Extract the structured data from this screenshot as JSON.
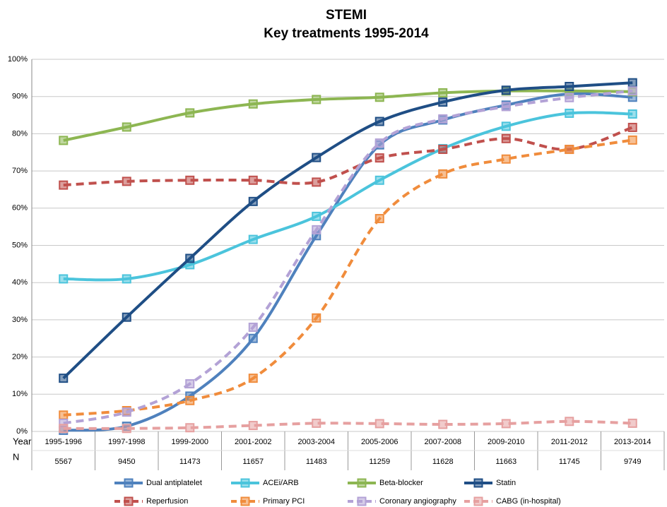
{
  "chart_data": {
    "type": "line",
    "title": "STEMI",
    "subtitle": "Key treatments 1995-2014",
    "categories": [
      "1995-1996",
      "1997-1998",
      "1999-2000",
      "2001-2002",
      "2003-2004",
      "2005-2006",
      "2007-2008",
      "2009-2010",
      "2011-2012",
      "2013-2014"
    ],
    "row_labels": [
      "Year",
      "N"
    ],
    "n_values": [
      5567,
      9450,
      11473,
      11657,
      11483,
      11259,
      11628,
      11663,
      11745,
      9749
    ],
    "ylim": [
      0,
      100
    ],
    "yticks": [
      {
        "value": 0,
        "label": "0%"
      },
      {
        "value": 10,
        "label": "10%"
      },
      {
        "value": 20,
        "label": "20%"
      },
      {
        "value": 30,
        "label": "30%"
      },
      {
        "value": 40,
        "label": "40%"
      },
      {
        "value": 50,
        "label": "50%"
      },
      {
        "value": 60,
        "label": "60%"
      },
      {
        "value": 70,
        "label": "70%"
      },
      {
        "value": 80,
        "label": "80%"
      },
      {
        "value": 90,
        "label": "90%"
      },
      {
        "value": 100,
        "label": "100%"
      }
    ],
    "grid": true,
    "legend": "bottom",
    "series": [
      {
        "name": "Dual antiplatelet",
        "color": "#4f81bd",
        "dashed": false,
        "values": [
          0.3,
          1.4,
          9.5,
          25,
          52.6,
          77,
          83.7,
          87.7,
          90.7,
          89.8
        ]
      },
      {
        "name": "ACEi/ARB",
        "color": "#4bc4dc",
        "dashed": false,
        "values": [
          41,
          41,
          44.8,
          51.6,
          57.8,
          67.5,
          76,
          82,
          85.5,
          85.3
        ]
      },
      {
        "name": "Beta-blocker",
        "color": "#8db652",
        "dashed": false,
        "values": [
          78.2,
          81.8,
          85.6,
          88,
          89.2,
          89.8,
          91,
          91.5,
          91.5,
          91.3
        ]
      },
      {
        "name": "Statin",
        "color": "#1f4e85",
        "dashed": false,
        "values": [
          14.3,
          30.7,
          46.5,
          61.8,
          73.6,
          83.3,
          88.5,
          91.7,
          92.7,
          93.7
        ]
      },
      {
        "name": "Reperfusion",
        "color": "#c0504d",
        "dashed": true,
        "values": [
          66.2,
          67.2,
          67.5,
          67.5,
          67,
          73.5,
          75.8,
          78.7,
          75.8,
          81.7
        ]
      },
      {
        "name": "Primary PCI",
        "color": "#f08c3c",
        "dashed": true,
        "values": [
          4.4,
          5.6,
          8.3,
          14.3,
          30.5,
          57.2,
          69.2,
          73.2,
          75.8,
          78.3
        ]
      },
      {
        "name": "Coronary angiography",
        "color": "#b3a2d6",
        "dashed": true,
        "values": [
          2.2,
          5.2,
          12.8,
          28,
          54.2,
          77.5,
          84,
          87.3,
          89.7,
          91.5
        ]
      },
      {
        "name": "CABG (in-hospital)",
        "color": "#e6a0a0",
        "dashed": true,
        "values": [
          0.8,
          0.8,
          1,
          1.6,
          2.2,
          2.1,
          1.9,
          2.1,
          2.7,
          2.2
        ]
      }
    ]
  }
}
